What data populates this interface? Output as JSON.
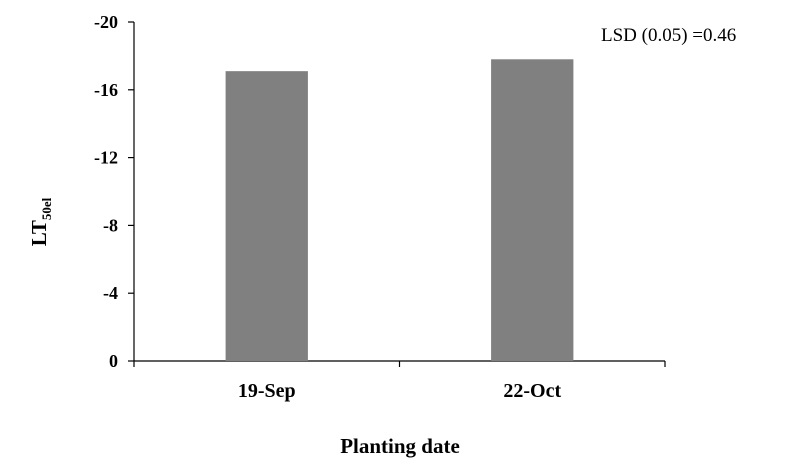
{
  "chart_data": {
    "type": "bar",
    "categories": [
      "19-Sep",
      "22-Oct"
    ],
    "values": [
      -17.1,
      -17.8
    ],
    "title": "",
    "xlabel": "Planting date",
    "ylabel": {
      "main": "LT",
      "subscript": "50el"
    },
    "ylim": [
      0,
      -20
    ],
    "y_axis_inverted": true,
    "yticks": [
      0,
      -4,
      -8,
      -12,
      -16,
      -20
    ],
    "ytick_labels": [
      "0",
      "-4",
      "-8",
      "-12",
      "-16",
      "-20"
    ],
    "annotation": "LSD (0.05) =0.46",
    "grid": false,
    "legend": "none",
    "bar_color": "#808080",
    "axis_color": "#000000"
  }
}
